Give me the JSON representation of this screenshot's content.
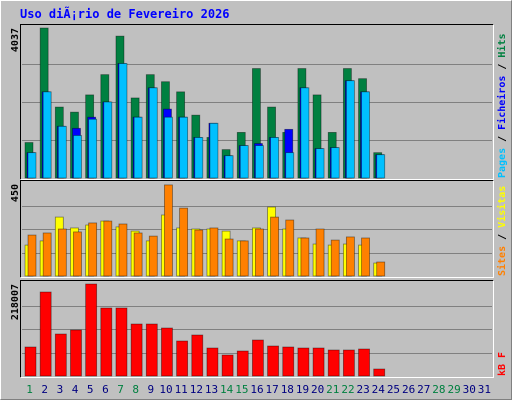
{
  "title": "Uso diÃ¡rio de Fevereiro 2026",
  "legend_separator": "/",
  "highlight_days": [
    1,
    7,
    8,
    14,
    15,
    21,
    22,
    28,
    29
  ],
  "highlight_color": "#008040",
  "label_color": "#000080",
  "grid_divisions": 4,
  "chart_data": [
    {
      "type": "bar",
      "ylim": [
        0,
        4037
      ],
      "yticks": [
        4037
      ],
      "series": [
        {
          "name": "Hits",
          "color": "#008040",
          "values": [
            942,
            3983,
            1884,
            1749,
            2207,
            2745,
            3768,
            2126,
            2745,
            2557,
            2288,
            1669,
            1077,
            754,
            1211,
            2907,
            1884,
            1211,
            2907,
            2207,
            1211,
            2907,
            2638,
            673,
            null,
            null,
            null,
            null,
            null,
            null,
            null
          ]
        },
        {
          "name": "Ficheiros",
          "color": "#0000ff",
          "values": [
            673,
            2288,
            1373,
            1319,
            1615,
            2019,
            3041,
            1615,
            2395,
            1830,
            1615,
            1077,
            1453,
            592,
            861,
            915,
            1077,
            1292,
            2395,
            780,
            807,
            2584,
            2288,
            619,
            null,
            null,
            null,
            null,
            null,
            null,
            null
          ]
        },
        {
          "name": "Pages",
          "color": "#00c0ff",
          "values": [
            673,
            2288,
            1373,
            1130,
            1561,
            2019,
            3041,
            1615,
            2395,
            1615,
            1615,
            1077,
            1453,
            592,
            861,
            861,
            1077,
            673,
            2395,
            780,
            807,
            2584,
            2288,
            619,
            null,
            null,
            null,
            null,
            null,
            null,
            null
          ]
        }
      ]
    },
    {
      "type": "bar",
      "ylim": [
        0,
        450
      ],
      "yticks": [
        450
      ],
      "series": [
        {
          "name": "Visitas",
          "color": "#ffff00",
          "values": [
            148,
            168,
            282,
            230,
            244,
            263,
            235,
            215,
            168,
            292,
            230,
            225,
            225,
            215,
            168,
            230,
            330,
            225,
            182,
            153,
            148,
            153,
            148,
            62,
            null,
            null,
            null,
            null,
            null,
            null,
            null
          ]
        },
        {
          "name": "Sites",
          "color": "#ff8000",
          "values": [
            196,
            206,
            225,
            211,
            254,
            263,
            249,
            206,
            191,
            436,
            325,
            220,
            230,
            177,
            168,
            225,
            282,
            268,
            182,
            225,
            172,
            187,
            182,
            67,
            null,
            null,
            null,
            null,
            null,
            null,
            null
          ]
        }
      ]
    },
    {
      "type": "bar",
      "ylim": [
        0,
        218007
      ],
      "yticks": [
        218007
      ],
      "categories": [
        "1",
        "2",
        "3",
        "4",
        "5",
        "6",
        "7",
        "8",
        "9",
        "10",
        "11",
        "12",
        "13",
        "14",
        "15",
        "16",
        "17",
        "18",
        "19",
        "20",
        "21",
        "22",
        "23",
        "24",
        "25",
        "26",
        "27",
        "28",
        "29",
        "30",
        "31"
      ],
      "series": [
        {
          "name": "kB F",
          "color": "#ff0000",
          "values": [
            67260,
            194800,
            97400,
            106680,
            213370,
            157700,
            157700,
            120600,
            120600,
            111320,
            81170,
            95080,
            64930,
            48700,
            57980,
            83490,
            69570,
            67260,
            64930,
            64930,
            60290,
            60290,
            62610,
            16230,
            null,
            null,
            null,
            null,
            null,
            null,
            null
          ]
        }
      ]
    }
  ]
}
